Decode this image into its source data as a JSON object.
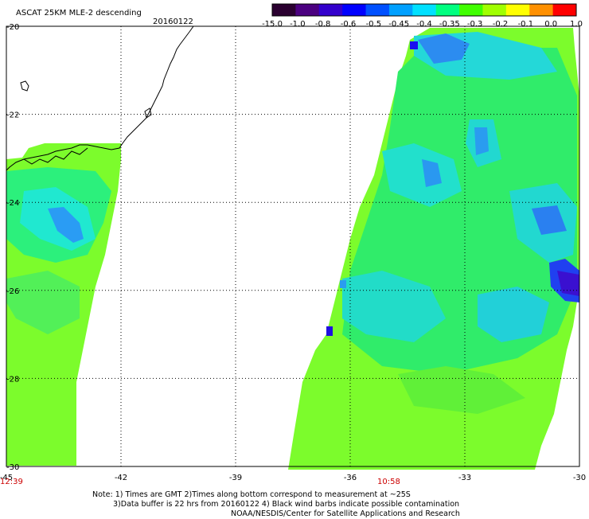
{
  "header": {
    "title": "ASCAT 25KM MLE-2 descending",
    "date": "20160122"
  },
  "colorbar": {
    "labels": [
      "-15.0",
      "-1.0",
      "-0.8",
      "-0.6",
      "-0.5",
      "-0.45",
      "-0.4",
      "-0.35",
      "-0.3",
      "-0.2",
      "-0.1",
      "0.0",
      "1.0"
    ],
    "colors": [
      "#2a0030",
      "#4b0080",
      "#3300cc",
      "#0000ff",
      "#0050ff",
      "#00a0ff",
      "#00e0ff",
      "#00ff80",
      "#40ff00",
      "#a0ff00",
      "#ffff00",
      "#ff9000",
      "#ff0000"
    ]
  },
  "axes": {
    "x_labels": [
      "-45",
      "-42",
      "-39",
      "-36",
      "-33",
      "-30"
    ],
    "y_labels": [
      "-20",
      "-22",
      "-24",
      "-26",
      "-28",
      "-30"
    ],
    "x_range": [
      -45,
      -30
    ],
    "y_range": [
      -30,
      -20
    ]
  },
  "swaths": [
    {
      "name": "west",
      "time": "12:39"
    },
    {
      "name": "east",
      "time": "10:58"
    }
  ],
  "notes": {
    "line1": "Note: 1) Times are GMT 2)Times along bottom correspond to measurement at ~25S",
    "line2": "3)Data buffer is 22 hrs from 20160122 4) Black wind barbs indicate possible contamination",
    "line3": "NOAA/NESDIS/Center for Satellite Applications and Research"
  }
}
